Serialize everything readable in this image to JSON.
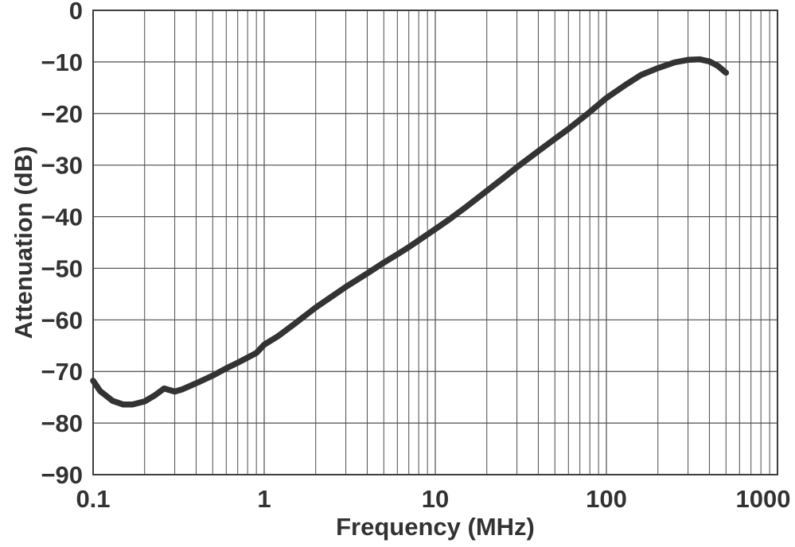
{
  "figure": {
    "background_color": "#ffffff",
    "text_color": "#323232",
    "grid_color": "#4d4d4d",
    "frame_color": "#3d3d3d",
    "curve_color": "#333333"
  },
  "chart_data": {
    "type": "line",
    "title": "",
    "xlabel": "Frequency (MHz)",
    "ylabel": "Attenuation (dB)",
    "x_scale": "log",
    "xlim": [
      0.1,
      1000
    ],
    "ylim": [
      -90,
      0
    ],
    "grid": "on",
    "legend": "none",
    "x_tick_values": [
      0.1,
      1,
      10,
      100,
      1000
    ],
    "x_tick_labels": [
      "0.1",
      "1",
      "10",
      "100",
      "1000"
    ],
    "y_tick_values": [
      0,
      -10,
      -20,
      -30,
      -40,
      -50,
      -60,
      -70,
      -80,
      -90
    ],
    "y_tick_labels": [
      "0",
      "−10",
      "−20",
      "−30",
      "−40",
      "−50",
      "−60",
      "−70",
      "−80",
      "−90"
    ],
    "series": [
      {
        "name": "attenuation",
        "x": [
          0.1,
          0.11,
          0.13,
          0.15,
          0.17,
          0.2,
          0.23,
          0.26,
          0.3,
          0.33,
          0.4,
          0.5,
          0.6,
          0.7,
          0.8,
          0.9,
          1,
          1.2,
          1.5,
          2,
          2.5,
          3,
          4,
          5,
          6,
          7,
          8.5,
          10,
          12,
          15,
          20,
          25,
          30,
          40,
          50,
          60,
          80,
          100,
          130,
          160,
          200,
          250,
          300,
          350,
          400,
          450,
          500
        ],
        "y": [
          -71.8,
          -73.8,
          -75.7,
          -76.4,
          -76.4,
          -75.8,
          -74.6,
          -73.3,
          -73.9,
          -73.5,
          -72.3,
          -70.8,
          -69.4,
          -68.3,
          -67.3,
          -66.4,
          -64.8,
          -63.2,
          -60.8,
          -57.6,
          -55.4,
          -53.6,
          -51,
          -48.9,
          -47.3,
          -45.9,
          -44,
          -42.4,
          -40.6,
          -38.2,
          -35,
          -32.5,
          -30.4,
          -27.3,
          -24.9,
          -23,
          -19.7,
          -17,
          -14.4,
          -12.5,
          -11.2,
          -10.1,
          -9.6,
          -9.5,
          -9.9,
          -10.8,
          -12.1
        ]
      }
    ]
  }
}
